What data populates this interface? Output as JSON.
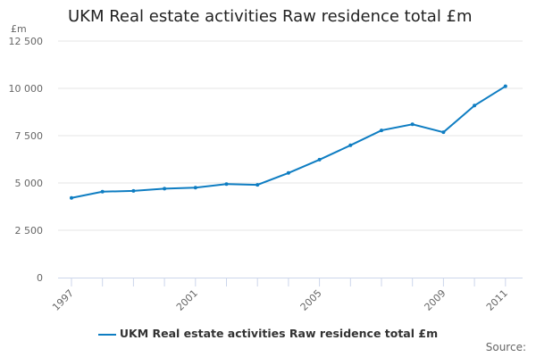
{
  "title": "UKM Real estate activities Raw residence total £m",
  "unit_label": "£m",
  "source_label": "Source:",
  "chart_data": {
    "type": "line",
    "title": "UKM Real estate activities Raw residence total £m",
    "ylabel": "£m",
    "x": [
      1997,
      1998,
      1999,
      2000,
      2001,
      2002,
      2003,
      2004,
      2005,
      2006,
      2007,
      2008,
      2009,
      2010,
      2011
    ],
    "x_tick_labels": [
      "1997",
      "2001",
      "2005",
      "2009",
      "2011"
    ],
    "y_tick_labels": [
      "0",
      "2 500",
      "5 000",
      "7 500",
      "10 000",
      "12 500"
    ],
    "y_ticks": [
      0,
      2500,
      5000,
      7500,
      10000,
      12500
    ],
    "ylim": [
      0,
      12500
    ],
    "grid": true,
    "legend_position": "bottom",
    "series": [
      {
        "name": "UKM Real estate activities Raw residence total £m",
        "color": "#0e7dc2",
        "values": [
          4210,
          4540,
          4580,
          4700,
          4750,
          4940,
          4900,
          5530,
          6230,
          6990,
          7780,
          8100,
          7680,
          9090,
          10110
        ]
      }
    ]
  }
}
